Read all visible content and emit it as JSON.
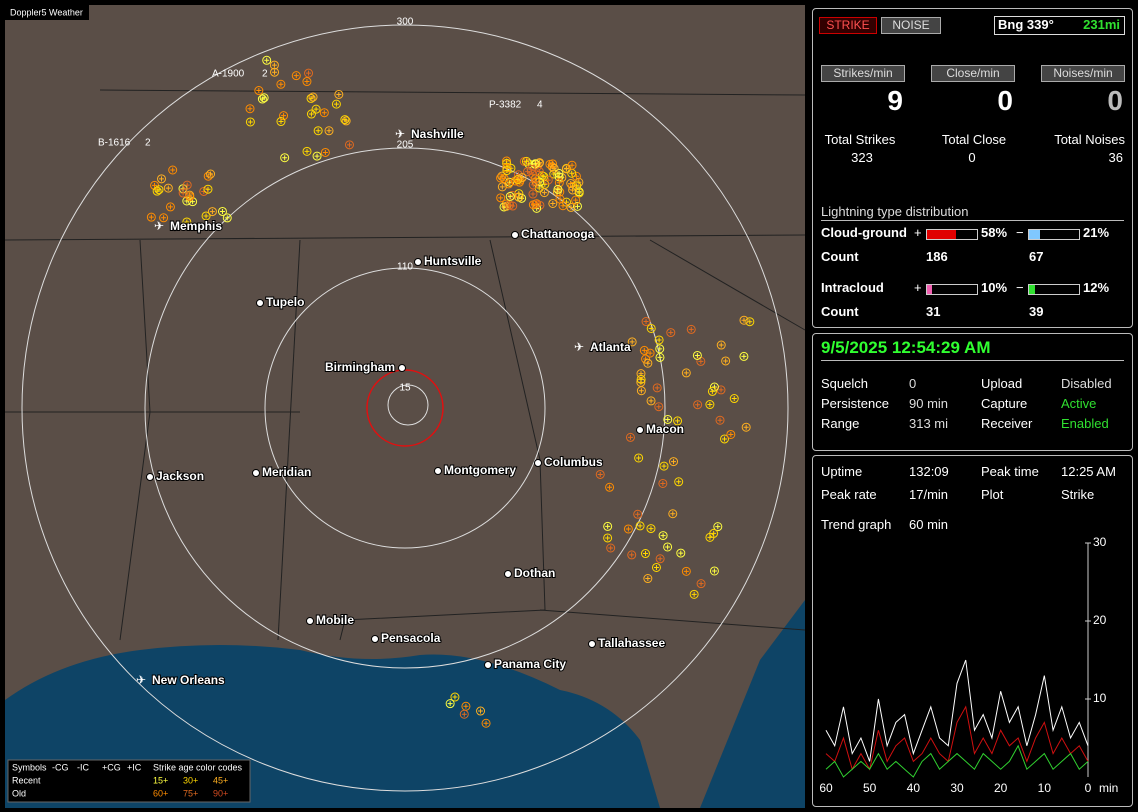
{
  "app_title": "Doppler5 Weather",
  "map": {
    "rings": [
      "15",
      "110",
      "205",
      "300"
    ],
    "cities": [
      "Nashville",
      "Memphis",
      "Chattanooga",
      "Huntsville",
      "Tupelo",
      "Birmingham",
      "Atlanta",
      "Macon",
      "Jackson",
      "Meridian",
      "Montgomery",
      "Columbus",
      "Dothan",
      "Mobile",
      "Pensacola",
      "Tallahassee",
      "Panama City",
      "New Orleans"
    ],
    "storms": [
      {
        "id": "A-1900",
        "count": 2
      },
      {
        "id": "P-3382",
        "count": 4
      },
      {
        "id": "B-1616",
        "count": 2
      }
    ],
    "legend": {
      "symbols": "Symbols",
      "types": [
        "-CG",
        "-IC",
        "+CG",
        "+IC"
      ],
      "age_title": "Strike age color codes",
      "recent": "Recent",
      "old": "Old",
      "recent_ages": [
        "15+",
        "30+",
        "45+"
      ],
      "old_ages": [
        "60+",
        "75+",
        "90+"
      ]
    }
  },
  "status": {
    "strike": "STRIKE",
    "noise": "NOISE",
    "bearing": "Bng 339°",
    "distance": "231mi"
  },
  "rates": [
    {
      "label": "Strikes/min",
      "value": 9
    },
    {
      "label": "Close/min",
      "value": 0
    },
    {
      "label": "Noises/min",
      "value": 0
    }
  ],
  "totals": [
    {
      "label": "Total Strikes",
      "value": 323
    },
    {
      "label": "Total Close",
      "value": 0
    },
    {
      "label": "Total Noises",
      "value": 36
    }
  ],
  "distribution": {
    "title": "Lightning type distribution",
    "plus": "+",
    "minus": "−",
    "count_label": "Count",
    "rows": [
      {
        "label": "Cloud-ground",
        "pos": {
          "value": 58,
          "label": "58%"
        },
        "neg": {
          "value": 21,
          "label": "21%"
        },
        "pos_count": 186,
        "neg_count": 67
      },
      {
        "label": "Intracloud",
        "pos": {
          "value": 10,
          "label": "10%"
        },
        "neg": {
          "value": 12,
          "label": "12%"
        },
        "pos_count": 31,
        "neg_count": 39
      }
    ]
  },
  "clock": "9/5/2025 12:54:29 AM",
  "settings": [
    [
      "Squelch",
      "0"
    ],
    [
      "Persistence",
      "90 min"
    ],
    [
      "Range",
      "313 mi"
    ],
    [
      "Upload",
      "Disabled"
    ],
    [
      "Capture",
      "Active"
    ],
    [
      "Receiver",
      "Enabled"
    ]
  ],
  "stats": [
    [
      "Uptime",
      "132:09"
    ],
    [
      "Peak rate",
      "17/min"
    ],
    [
      "Peak time",
      "12:25 AM"
    ],
    [
      "Plot",
      "Strike"
    ]
  ],
  "trend": {
    "label": "Trend graph",
    "span": "60 min"
  },
  "chart_data": {
    "type": "line",
    "x_label": "min",
    "xlim": [
      60,
      0
    ],
    "xticks": [
      60,
      50,
      40,
      30,
      20,
      10,
      0
    ],
    "ylim": [
      0,
      30
    ],
    "yticks": [
      10,
      20,
      30
    ],
    "x": [
      60,
      58,
      56,
      54,
      52,
      50,
      48,
      46,
      44,
      42,
      40,
      38,
      36,
      34,
      32,
      30,
      28,
      26,
      24,
      22,
      20,
      18,
      16,
      14,
      12,
      10,
      8,
      6,
      4,
      2,
      0
    ],
    "series": [
      {
        "name": "Total",
        "color": "#ffffff",
        "values": [
          6,
          4,
          9,
          3,
          5,
          2,
          10,
          4,
          7,
          8,
          3,
          6,
          9,
          5,
          4,
          12,
          15,
          6,
          8,
          5,
          11,
          7,
          9,
          4,
          8,
          13,
          6,
          9,
          5,
          7,
          4
        ]
      },
      {
        "name": "Strike",
        "color": "#d01010",
        "values": [
          3,
          2,
          5,
          1,
          3,
          1,
          6,
          2,
          4,
          5,
          2,
          3,
          5,
          3,
          2,
          7,
          9,
          3,
          5,
          3,
          6,
          4,
          5,
          2,
          5,
          7,
          3,
          5,
          3,
          4,
          2
        ]
      },
      {
        "name": "Intracloud",
        "color": "#30d030",
        "values": [
          1,
          2,
          0,
          1,
          2,
          1,
          3,
          1,
          2,
          1,
          0,
          2,
          3,
          1,
          2,
          3,
          2,
          1,
          3,
          2,
          1,
          2,
          4,
          1,
          2,
          3,
          1,
          2,
          3,
          1,
          2
        ]
      }
    ]
  }
}
